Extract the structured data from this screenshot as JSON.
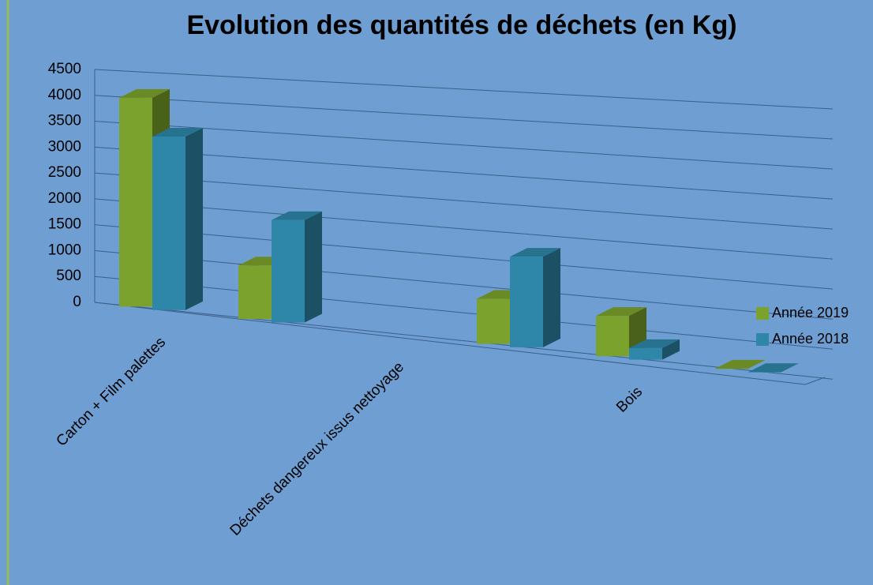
{
  "chart_data": {
    "type": "bar3d",
    "title": "Evolution des quantités de déchets (en Kg)",
    "categories": [
      "Carton + Film palettes",
      null,
      "Déchets dangereux issus nettoyage",
      null,
      "Bois",
      null
    ],
    "series": [
      {
        "name": "Année 2019",
        "color": "#7ba22c",
        "values": [
          4000,
          1000,
          null,
          800,
          700,
          0
        ]
      },
      {
        "name": "Année 2018",
        "color": "#2e86a8",
        "values": [
          3300,
          1900,
          null,
          1600,
          200,
          0
        ]
      }
    ],
    "ylim": [
      0,
      4500
    ],
    "yticks": [
      0,
      500,
      1000,
      1500,
      2000,
      2500,
      3000,
      3500,
      4000,
      4500
    ],
    "grid": true,
    "legend": "right"
  }
}
